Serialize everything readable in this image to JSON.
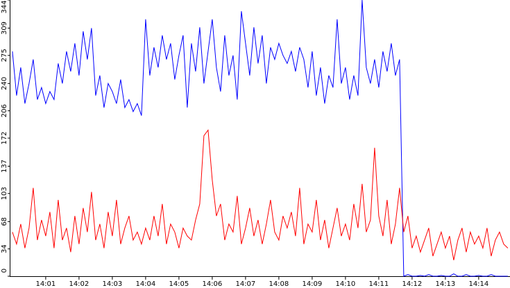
{
  "chart_data": {
    "type": "line",
    "x": [
      0,
      0.125,
      0.25,
      0.375,
      0.5,
      0.625,
      0.75,
      0.875,
      1,
      1.125,
      1.25,
      1.375,
      1.5,
      1.625,
      1.75,
      1.875,
      2,
      2.125,
      2.25,
      2.375,
      2.5,
      2.625,
      2.75,
      2.875,
      3,
      3.125,
      3.25,
      3.375,
      3.5,
      3.625,
      3.75,
      3.875,
      4,
      4.125,
      4.25,
      4.375,
      4.5,
      4.625,
      4.75,
      4.875,
      5,
      5.125,
      5.25,
      5.375,
      5.5,
      5.625,
      5.75,
      5.875,
      6,
      6.125,
      6.25,
      6.375,
      6.5,
      6.625,
      6.75,
      6.875,
      7,
      7.125,
      7.25,
      7.375,
      7.5,
      7.625,
      7.75,
      7.875,
      8,
      8.125,
      8.25,
      8.375,
      8.5,
      8.625,
      8.75,
      8.875,
      9,
      9.125,
      9.25,
      9.375,
      9.5,
      9.625,
      9.75,
      9.875,
      10,
      10.125,
      10.25,
      10.375,
      10.5,
      10.625,
      10.75,
      10.875,
      11,
      11.125,
      11.25,
      11.375,
      11.5,
      11.625,
      11.75,
      11.875,
      12,
      12.125,
      12.25,
      12.375,
      12.5,
      12.625,
      12.75,
      12.875,
      13,
      13.125,
      13.25,
      13.375,
      13.5,
      13.625,
      13.75,
      13.875,
      14,
      14.125,
      14.25,
      14.375,
      14.5,
      14.625,
      14.75,
      14.875
    ],
    "series": [
      {
        "color": "#0000ff",
        "values": [
          280,
          225,
          260,
          215,
          240,
          270,
          220,
          235,
          215,
          230,
          220,
          265,
          240,
          280,
          255,
          290,
          250,
          305,
          270,
          309,
          225,
          250,
          210,
          240,
          230,
          215,
          245,
          210,
          220,
          205,
          215,
          200,
          320,
          250,
          285,
          260,
          300,
          270,
          290,
          245,
          275,
          300,
          210,
          290,
          255,
          310,
          240,
          280,
          320,
          260,
          230,
          300,
          250,
          275,
          220,
          330,
          290,
          250,
          310,
          265,
          300,
          240,
          285,
          270,
          290,
          275,
          265,
          280,
          255,
          285,
          270,
          235,
          280,
          225,
          260,
          215,
          250,
          235,
          320,
          240,
          260,
          220,
          250,
          225,
          344,
          260,
          240,
          270,
          235,
          280,
          255,
          290,
          250,
          270,
          0,
          2,
          0,
          0,
          1,
          0,
          2,
          0,
          0,
          1,
          0,
          0,
          3,
          0,
          0,
          2,
          0,
          0,
          1,
          0,
          0,
          2,
          0,
          0,
          0,
          0
        ]
      },
      {
        "color": "#ff0000",
        "values": [
          55,
          40,
          65,
          35,
          60,
          110,
          45,
          70,
          50,
          80,
          35,
          95,
          45,
          60,
          30,
          75,
          40,
          85,
          55,
          105,
          45,
          65,
          35,
          80,
          50,
          95,
          40,
          60,
          75,
          45,
          55,
          40,
          60,
          45,
          75,
          50,
          90,
          40,
          65,
          55,
          35,
          60,
          50,
          45,
          70,
          90,
          175,
          182,
          120,
          75,
          90,
          45,
          65,
          55,
          100,
          40,
          60,
          85,
          50,
          70,
          40,
          65,
          95,
          55,
          45,
          75,
          60,
          80,
          50,
          110,
          40,
          65,
          55,
          95,
          45,
          70,
          35,
          60,
          85,
          50,
          65,
          45,
          90,
          60,
          115,
          55,
          70,
          160,
          75,
          50,
          95,
          40,
          65,
          110,
          55,
          75,
          35,
          50,
          30,
          45,
          60,
          25,
          40,
          55,
          35,
          50,
          20,
          45,
          60,
          30,
          55,
          40,
          50,
          35,
          60,
          25,
          45,
          55,
          40,
          35
        ]
      }
    ],
    "xlim": [
      -0.06,
      14.94
    ],
    "xticks": [
      {
        "value": 1,
        "label": "14:01"
      },
      {
        "value": 2,
        "label": "14:02"
      },
      {
        "value": 3,
        "label": "14:03"
      },
      {
        "value": 4,
        "label": "14:04"
      },
      {
        "value": 5,
        "label": "14:05"
      },
      {
        "value": 6,
        "label": "14:06"
      },
      {
        "value": 7,
        "label": "14:07"
      },
      {
        "value": 8,
        "label": "14:08"
      },
      {
        "value": 9,
        "label": "14:09"
      },
      {
        "value": 10,
        "label": "14:10"
      },
      {
        "value": 11,
        "label": "14:11"
      },
      {
        "value": 12,
        "label": "14:12"
      },
      {
        "value": 13,
        "label": "14:13"
      },
      {
        "value": 14,
        "label": "14:14"
      }
    ],
    "ylim": [
      0,
      344
    ],
    "yticks": [
      0,
      34,
      68,
      103,
      137,
      172,
      206,
      240,
      275,
      309,
      344
    ]
  }
}
